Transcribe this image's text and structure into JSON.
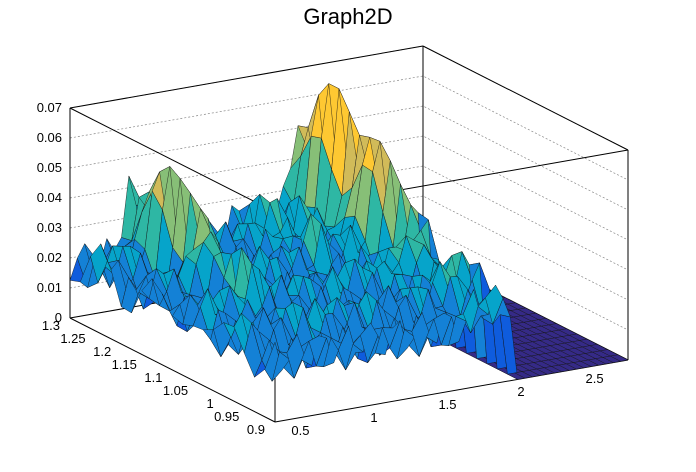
{
  "chart_data": {
    "type": "surface3d",
    "title": "Graph2D",
    "x_ticks": [
      "0.5",
      "1",
      "1.5",
      "2",
      "2.5"
    ],
    "y_ticks": [
      "0.9",
      "0.95",
      "1",
      "1.05",
      "1.1",
      "1.15",
      "1.2",
      "1.25",
      "1.3"
    ],
    "z_ticks": [
      "0",
      "0.01",
      "0.02",
      "0.03",
      "0.04",
      "0.05",
      "0.06",
      "0.07"
    ],
    "xlim": [
      0.3,
      2.7
    ],
    "ylim": [
      0.9,
      1.3
    ],
    "zlim": [
      0,
      0.07
    ],
    "colormap": [
      "#352a87",
      "#0f5cdd",
      "#1481d6",
      "#06a4ca",
      "#2eb7a4",
      "#87bf77",
      "#d1bb59",
      "#fec832",
      "#f9fb0e"
    ],
    "grid": true,
    "regions": [
      {
        "x_range": [
          0.3,
          0.8
        ],
        "z_level": 0.02,
        "peak_x": 0.7,
        "peak_z": 0.05
      },
      {
        "x_range": [
          0.8,
          1.65
        ],
        "z_level": 0.02,
        "peak_x": 1.45,
        "peak_z": 0.03
      },
      {
        "x_range": [
          1.65,
          1.95
        ],
        "z_level": 0.025,
        "peak_x": 1.85,
        "peak_z": 0.068
      }
    ]
  }
}
